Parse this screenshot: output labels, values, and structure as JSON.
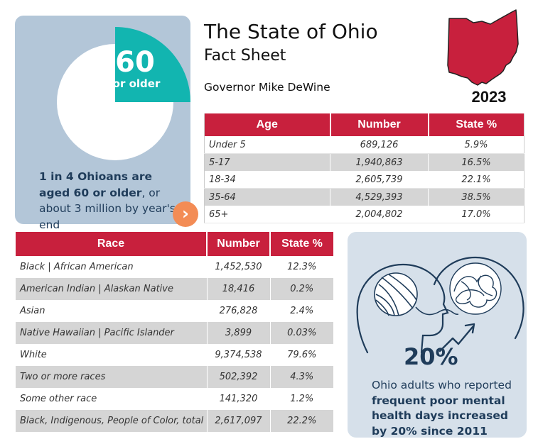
{
  "header": {
    "title": "The State of Ohio",
    "subtitle": "Fact Sheet",
    "governor": "Governor Mike DeWine",
    "year": "2023"
  },
  "pie_card": {
    "big_number": "60",
    "sub_label": "or older",
    "share_fraction": 0.25,
    "caption_bold": "1 in 4 Ohioans are aged 60 or older",
    "caption_rest": ", or about 3 million by year's end",
    "colors": {
      "card": "#b3c6d8",
      "slice": "#12b5b0",
      "pie": "#ffffff",
      "button": "#f38c55"
    },
    "next_icon": "chevron-right-icon"
  },
  "age_table": {
    "headers": [
      "Age",
      "Number",
      "State %"
    ],
    "rows": [
      [
        "Under 5",
        "689,126",
        "5.9%"
      ],
      [
        "5-17",
        "1,940,863",
        "16.5%"
      ],
      [
        "18-34",
        "2,605,739",
        "22.1%"
      ],
      [
        "35-64",
        "4,529,393",
        "38.5%"
      ],
      [
        "65+",
        "2,004,802",
        "17.0%"
      ]
    ]
  },
  "race_table": {
    "headers": [
      "Race",
      "Number",
      "State %"
    ],
    "rows": [
      [
        "Black | African American",
        "1,452,530",
        "12.3%"
      ],
      [
        "American Indian | Alaskan Native",
        "18,416",
        "0.2%"
      ],
      [
        "Asian",
        "276,828",
        "2.4%"
      ],
      [
        "Native Hawaiian | Pacific Islander",
        "3,899",
        "0.03%"
      ],
      [
        "White",
        "9,374,538",
        "79.6%"
      ],
      [
        "Two or more races",
        "502,392",
        "4.3%"
      ],
      [
        "Some other race",
        "141,320",
        "1.2%"
      ],
      [
        "Black, Indigenous, People of Color, total",
        "2,617,097",
        "22.2%"
      ]
    ]
  },
  "mental_health": {
    "percent": "20%",
    "caption_lead": "Ohio adults who reported ",
    "caption_bold": "frequent poor mental health days increased by 20% since 2011"
  },
  "colors": {
    "accent_red": "#c8203d",
    "navy": "#1f3c5a",
    "row_alt": "#d5d5d5"
  }
}
